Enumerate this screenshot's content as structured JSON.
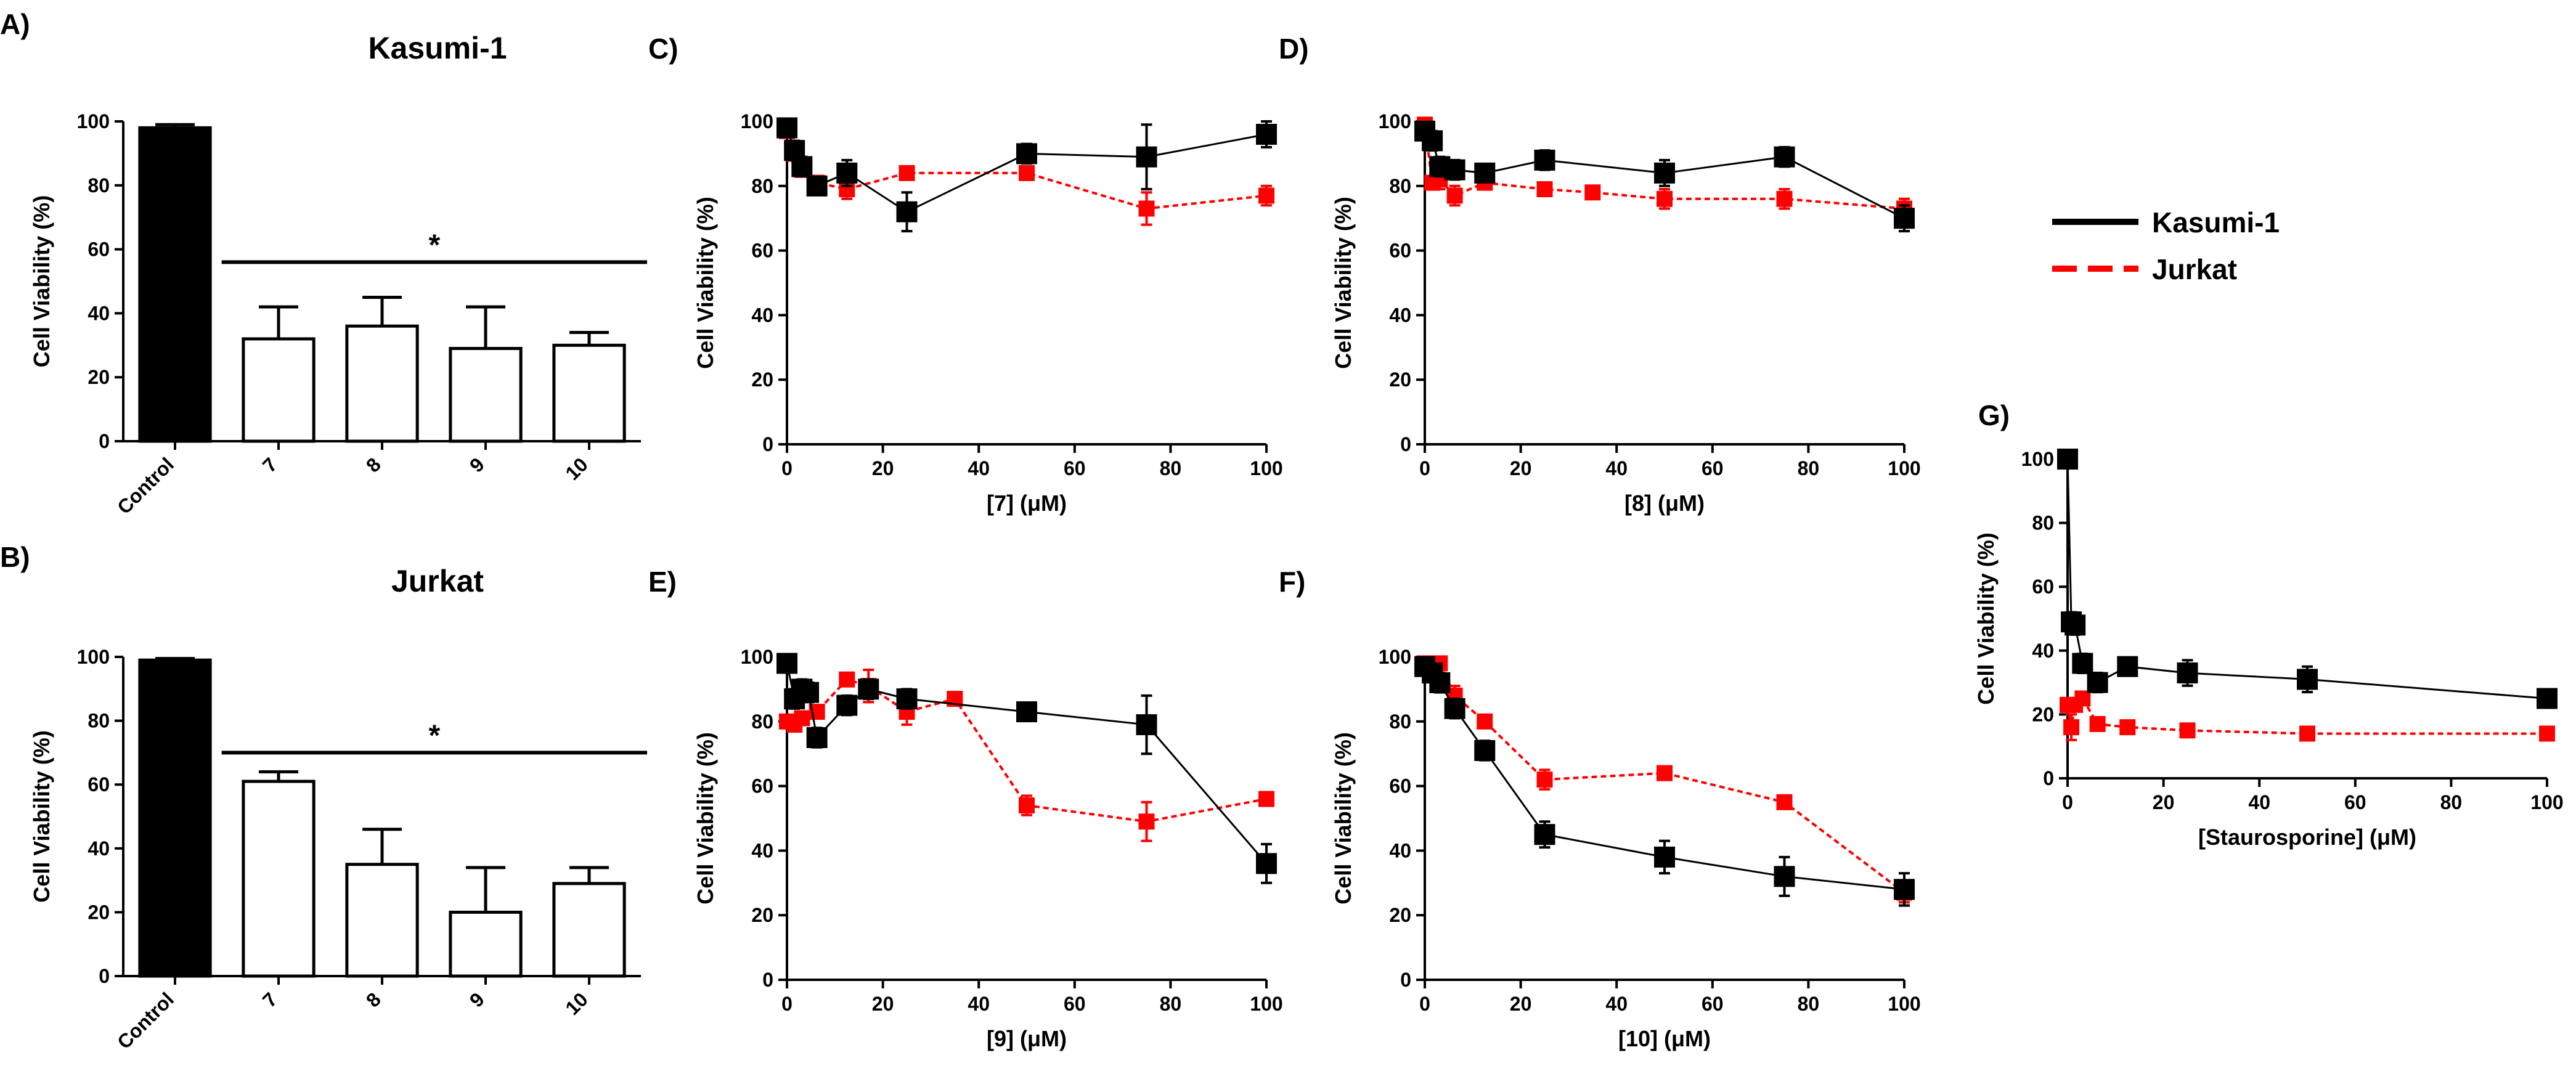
{
  "legend": {
    "series": [
      {
        "name": "Kasumi-1",
        "color": "#000000",
        "style": "solid"
      },
      {
        "name": "Jurkat",
        "color": "#ff0000",
        "style": "dashed"
      }
    ]
  },
  "chart_data": [
    {
      "id": "A",
      "panel": "A)",
      "type": "bar",
      "title": "Kasumi-1",
      "ylabel": "Cell Viability (%)",
      "xlabel": "",
      "ylim": [
        0,
        100
      ],
      "yticks": [
        0,
        20,
        40,
        60,
        80,
        100
      ],
      "categories": [
        "Control",
        "7",
        "8",
        "9",
        "10"
      ],
      "values": [
        98,
        32,
        36,
        29,
        30
      ],
      "errors": [
        1,
        10,
        9,
        13,
        4
      ],
      "bar_fills": [
        "#000000",
        "#ffffff",
        "#ffffff",
        "#ffffff",
        "#ffffff"
      ],
      "significance": {
        "label": "*",
        "level": 56
      }
    },
    {
      "id": "B",
      "panel": "B)",
      "type": "bar",
      "title": "Jurkat",
      "ylabel": "Cell Viability (%)",
      "xlabel": "",
      "ylim": [
        0,
        100
      ],
      "yticks": [
        0,
        20,
        40,
        60,
        80,
        100
      ],
      "categories": [
        "Control",
        "7",
        "8",
        "9",
        "10"
      ],
      "values": [
        99,
        61,
        35,
        20,
        29
      ],
      "errors": [
        0.5,
        3,
        11,
        14,
        5
      ],
      "bar_fills": [
        "#000000",
        "#ffffff",
        "#ffffff",
        "#ffffff",
        "#ffffff"
      ],
      "significance": {
        "label": "*",
        "level": 70
      }
    },
    {
      "id": "C",
      "panel": "C)",
      "type": "line",
      "title": "",
      "ylabel": "Cell Viability (%)",
      "xlabel": "[7] (μM)",
      "xlim": [
        0,
        100
      ],
      "xticks": [
        0,
        20,
        40,
        60,
        80,
        100
      ],
      "ylim": [
        0,
        100
      ],
      "yticks": [
        0,
        20,
        40,
        60,
        80,
        100
      ],
      "series": [
        {
          "name": "Kasumi-1",
          "color": "#000000",
          "x": [
            0,
            1.56,
            3.125,
            6.25,
            12.5,
            25,
            50,
            75,
            100
          ],
          "y": [
            98,
            91,
            86,
            80,
            84,
            72,
            90,
            89,
            96
          ],
          "err": [
            2,
            3,
            3,
            2,
            4,
            6,
            3,
            10,
            4
          ]
        },
        {
          "name": "Jurkat",
          "color": "#ff0000",
          "x": [
            0,
            1.56,
            3.125,
            6.25,
            12.5,
            25,
            50,
            75,
            100
          ],
          "y": [
            97,
            90,
            85,
            81,
            79,
            84,
            84,
            73,
            77
          ],
          "err": [
            2,
            2,
            2,
            2,
            3,
            2,
            2,
            5,
            3
          ]
        }
      ]
    },
    {
      "id": "D",
      "panel": "D)",
      "type": "line",
      "title": "",
      "ylabel": "Cell Viability (%)",
      "xlabel": "[8] (μM)",
      "xlim": [
        0,
        100
      ],
      "xticks": [
        0,
        20,
        40,
        60,
        80,
        100
      ],
      "ylim": [
        0,
        100
      ],
      "yticks": [
        0,
        20,
        40,
        60,
        80,
        100
      ],
      "series": [
        {
          "name": "Kasumi-1",
          "color": "#000000",
          "x": [
            0,
            1.56,
            3.125,
            6.25,
            12.5,
            25,
            50,
            75,
            100
          ],
          "y": [
            97,
            94,
            86,
            85,
            84,
            88,
            84,
            89,
            70
          ],
          "err": [
            2,
            3,
            3,
            3,
            2,
            3,
            4,
            3,
            4
          ]
        },
        {
          "name": "Jurkat",
          "color": "#ff0000",
          "x": [
            0,
            1.56,
            3.125,
            6.25,
            12.5,
            25,
            35,
            50,
            75,
            100
          ],
          "y": [
            99,
            81,
            82,
            77,
            81,
            79,
            78,
            76,
            76,
            73
          ],
          "err": [
            2,
            2,
            3,
            3,
            2,
            2,
            2,
            3,
            3,
            3
          ]
        }
      ]
    },
    {
      "id": "E",
      "panel": "E)",
      "type": "line",
      "title": "",
      "ylabel": "Cell Viability (%)",
      "xlabel": "[9] (μM)",
      "xlim": [
        0,
        100
      ],
      "xticks": [
        0,
        20,
        40,
        60,
        80,
        100
      ],
      "ylim": [
        0,
        100
      ],
      "yticks": [
        0,
        20,
        40,
        60,
        80,
        100
      ],
      "series": [
        {
          "name": "Kasumi-1",
          "color": "#000000",
          "x": [
            0,
            1.56,
            3.125,
            4.5,
            6.25,
            12.5,
            17,
            25,
            50,
            75,
            100
          ],
          "y": [
            98,
            87,
            90,
            89,
            75,
            85,
            90,
            87,
            83,
            79,
            36
          ],
          "err": [
            2,
            3,
            3,
            3,
            3,
            3,
            3,
            3,
            2,
            9,
            6
          ]
        },
        {
          "name": "Jurkat",
          "color": "#ff0000",
          "x": [
            0,
            1.56,
            3.125,
            6.25,
            12.5,
            17,
            25,
            35,
            50,
            75,
            100
          ],
          "y": [
            80,
            79,
            81,
            83,
            93,
            91,
            83,
            87,
            54,
            49,
            56
          ],
          "err": [
            2,
            2,
            2,
            2,
            2,
            5,
            4,
            2,
            3,
            6,
            2
          ]
        }
      ]
    },
    {
      "id": "F",
      "panel": "F)",
      "type": "line",
      "title": "",
      "ylabel": "Cell Viability (%)",
      "xlabel": "[10] (μM)",
      "xlim": [
        0,
        100
      ],
      "xticks": [
        0,
        20,
        40,
        60,
        80,
        100
      ],
      "ylim": [
        0,
        100
      ],
      "yticks": [
        0,
        20,
        40,
        60,
        80,
        100
      ],
      "series": [
        {
          "name": "Kasumi-1",
          "color": "#000000",
          "x": [
            0,
            1.56,
            3.125,
            6.25,
            12.5,
            25,
            50,
            75,
            100
          ],
          "y": [
            97,
            95,
            92,
            84,
            71,
            45,
            38,
            32,
            28
          ],
          "err": [
            2,
            2,
            3,
            3,
            3,
            4,
            5,
            6,
            5
          ]
        },
        {
          "name": "Jurkat",
          "color": "#ff0000",
          "x": [
            0,
            1.56,
            3.125,
            6.25,
            12.5,
            25,
            50,
            75,
            100
          ],
          "y": [
            98,
            97,
            98,
            88,
            80,
            62,
            64,
            55,
            27
          ],
          "err": [
            2,
            2,
            2,
            3,
            2,
            3,
            2,
            2,
            3
          ]
        }
      ]
    },
    {
      "id": "G",
      "panel": "G)",
      "type": "line",
      "title": "",
      "ylabel": "Cell Viability (%)",
      "xlabel": "[Staurosporine] (μM)",
      "xlim": [
        0,
        100
      ],
      "xticks": [
        0,
        20,
        40,
        60,
        80,
        100
      ],
      "ylim": [
        0,
        100
      ],
      "yticks": [
        0,
        20,
        40,
        60,
        80,
        100
      ],
      "series": [
        {
          "name": "Kasumi-1",
          "color": "#000000",
          "x": [
            0,
            0.78,
            1.56,
            3.125,
            6.25,
            12.5,
            25,
            50,
            100
          ],
          "y": [
            100,
            49,
            48,
            36,
            30,
            35,
            33,
            31,
            25
          ],
          "err": [
            1,
            3,
            3,
            3,
            3,
            2,
            4,
            4,
            2
          ]
        },
        {
          "name": "Jurkat",
          "color": "#ff0000",
          "x": [
            0,
            0.78,
            1.56,
            3.125,
            6.25,
            12.5,
            25,
            50,
            100
          ],
          "y": [
            23,
            16,
            23,
            25,
            17,
            16,
            15,
            14,
            14
          ],
          "err": [
            2,
            4,
            2,
            2,
            2,
            1,
            1,
            1,
            1
          ]
        }
      ]
    }
  ]
}
